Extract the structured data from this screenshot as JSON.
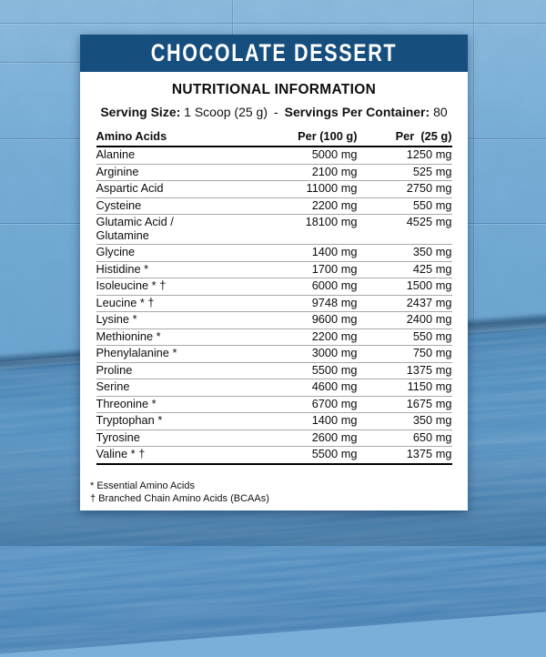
{
  "colors": {
    "brand_blue": "#164e7e",
    "wall_blue": "#79afd9",
    "floor_blue": "#4e8ec1"
  },
  "label": {
    "title": "CHOCOLATE DESSERT",
    "section_title": "NUTRITIONAL INFORMATION",
    "serving": {
      "size_label": "Serving Size:",
      "size_value": "1 Scoop (25 g)",
      "separator": "-",
      "per_container_label": "Servings Per Container:",
      "per_container_value": "80"
    },
    "table": {
      "headers": {
        "name": "Amino Acids",
        "per100": "Per (100 g)",
        "per25": "Per  (25 g)"
      },
      "rows": [
        {
          "name": "Alanine",
          "per100": "5000 mg",
          "per25": "1250 mg"
        },
        {
          "name": "Arginine",
          "per100": "2100 mg",
          "per25": "525 mg"
        },
        {
          "name": "Aspartic Acid",
          "per100": "11000 mg",
          "per25": "2750 mg"
        },
        {
          "name": "Cysteine",
          "per100": "2200 mg",
          "per25": "550 mg"
        },
        {
          "name": "Glutamic Acid /\nGlutamine",
          "per100": "18100 mg",
          "per25": "4525 mg"
        },
        {
          "name": "Glycine",
          "per100": "1400 mg",
          "per25": "350 mg"
        },
        {
          "name": "Histidine *",
          "per100": "1700 mg",
          "per25": "425 mg"
        },
        {
          "name": "Isoleucine * †",
          "per100": "6000 mg",
          "per25": "1500 mg"
        },
        {
          "name": "Leucine * †",
          "per100": "9748 mg",
          "per25": "2437 mg"
        },
        {
          "name": "Lysine *",
          "per100": "9600 mg",
          "per25": "2400 mg"
        },
        {
          "name": "Methionine *",
          "per100": "2200 mg",
          "per25": "550 mg"
        },
        {
          "name": "Phenylalanine *",
          "per100": "3000 mg",
          "per25": "750 mg"
        },
        {
          "name": "Proline",
          "per100": "5500 mg",
          "per25": "1375 mg"
        },
        {
          "name": "Serine",
          "per100": "4600 mg",
          "per25": "1150 mg"
        },
        {
          "name": "Threonine *",
          "per100": "6700 mg",
          "per25": "1675 mg"
        },
        {
          "name": "Tryptophan *",
          "per100": "1400 mg",
          "per25": "350 mg"
        },
        {
          "name": "Tyrosine",
          "per100": "2600 mg",
          "per25": "650 mg"
        },
        {
          "name": "Valine * †",
          "per100": "5500 mg",
          "per25": "1375 mg"
        }
      ]
    },
    "footnotes": [
      "* Essential Amino Acids",
      "† Branched Chain Amino Acids (BCAAs)"
    ]
  }
}
